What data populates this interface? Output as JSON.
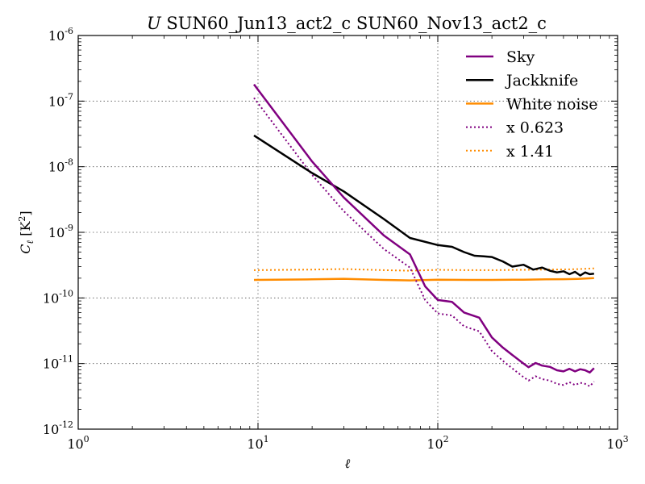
{
  "chart_data": {
    "type": "line",
    "title": {
      "prefix": "U",
      "text": " SUN60_Jun13_act2_c SUN60_Nov13_act2_c"
    },
    "xlabel": "ℓ",
    "ylabel": {
      "symbol": "C",
      "subscript": "ℓ",
      "unit": " [K",
      "unit_sup": "2",
      "unit_close": "]"
    },
    "xscale": "log",
    "yscale": "log",
    "xlim": [
      1,
      1000
    ],
    "ylim": [
      1e-12,
      1e-06
    ],
    "x_ticks": [
      {
        "base": "10",
        "exp": "0"
      },
      {
        "base": "10",
        "exp": "1"
      },
      {
        "base": "10",
        "exp": "2"
      },
      {
        "base": "10",
        "exp": "3"
      }
    ],
    "y_ticks": [
      {
        "base": "10",
        "exp": "-12"
      },
      {
        "base": "10",
        "exp": "-11"
      },
      {
        "base": "10",
        "exp": "-10"
      },
      {
        "base": "10",
        "exp": "-9"
      },
      {
        "base": "10",
        "exp": "-8"
      },
      {
        "base": "10",
        "exp": "-7"
      },
      {
        "base": "10",
        "exp": "-6"
      }
    ],
    "grid": true,
    "legend_position": "top-right",
    "series": [
      {
        "name": "Sky",
        "color": "#800080",
        "style": "solid",
        "x": [
          9.5,
          20,
          30,
          50,
          70,
          85,
          100,
          120,
          140,
          170,
          200,
          230,
          260,
          300,
          320,
          350,
          380,
          420,
          460,
          500,
          540,
          580,
          620,
          660,
          700,
          740
        ],
        "y": [
          1.8e-07,
          1.2e-08,
          3.4e-09,
          9e-10,
          4.6e-10,
          1.5e-10,
          9.3e-11,
          8.7e-11,
          6e-11,
          5e-11,
          2.5e-11,
          1.75e-11,
          1.35e-11,
          1e-11,
          8.8e-12,
          1.02e-11,
          9.3e-12,
          8.9e-12,
          7.9e-12,
          7.6e-12,
          8.3e-12,
          7.6e-12,
          8.2e-12,
          7.9e-12,
          7.3e-12,
          8.5e-12
        ]
      },
      {
        "name": "Jackknife",
        "color": "#000000",
        "style": "solid",
        "x": [
          9.5,
          20,
          30,
          50,
          70,
          100,
          120,
          140,
          160,
          180,
          200,
          230,
          260,
          300,
          340,
          380,
          420,
          460,
          500,
          540,
          580,
          620,
          660,
          700,
          740
        ],
        "y": [
          3e-08,
          8e-09,
          4.2e-09,
          1.6e-09,
          8.2e-10,
          6.4e-10,
          6e-10,
          5e-10,
          4.4e-10,
          4.3e-10,
          4.2e-10,
          3.6e-10,
          3e-10,
          3.2e-10,
          2.7e-10,
          2.9e-10,
          2.6e-10,
          2.45e-10,
          2.55e-10,
          2.3e-10,
          2.5e-10,
          2.2e-10,
          2.45e-10,
          2.3e-10,
          2.35e-10
        ]
      },
      {
        "name": "White noise",
        "color": "#ff8c00",
        "style": "solid",
        "x": [
          9.5,
          20,
          30,
          50,
          70,
          100,
          150,
          200,
          300,
          400,
          500,
          600,
          740
        ],
        "y": [
          1.88e-10,
          1.92e-10,
          1.96e-10,
          1.88e-10,
          1.85e-10,
          1.9e-10,
          1.88e-10,
          1.88e-10,
          1.9e-10,
          1.92e-10,
          1.93e-10,
          1.95e-10,
          2e-10
        ]
      },
      {
        "name": "x 0.623",
        "color": "#800080",
        "style": "dotted",
        "x": [
          9.5,
          20,
          30,
          50,
          70,
          85,
          100,
          120,
          140,
          170,
          200,
          230,
          260,
          300,
          320,
          350,
          380,
          420,
          460,
          500,
          540,
          580,
          620,
          660,
          700,
          740
        ],
        "y": [
          1.12e-07,
          7.5e-09,
          2.1e-09,
          5.6e-10,
          2.9e-10,
          9.3e-11,
          5.8e-11,
          5.4e-11,
          3.7e-11,
          3.1e-11,
          1.55e-11,
          1.1e-11,
          8.4e-12,
          6.2e-12,
          5.5e-12,
          6.4e-12,
          5.8e-12,
          5.5e-12,
          4.9e-12,
          4.7e-12,
          5.2e-12,
          4.7e-12,
          5.1e-12,
          4.9e-12,
          4.5e-12,
          5.3e-12
        ]
      },
      {
        "name": "x 1.41",
        "color": "#ff8c00",
        "style": "dotted",
        "x": [
          9.5,
          20,
          30,
          50,
          70,
          100,
          150,
          200,
          300,
          400,
          500,
          600,
          740
        ],
        "y": [
          2.65e-10,
          2.7e-10,
          2.76e-10,
          2.65e-10,
          2.6e-10,
          2.68e-10,
          2.65e-10,
          2.65e-10,
          2.68e-10,
          2.7e-10,
          2.72e-10,
          2.75e-10,
          2.82e-10
        ]
      }
    ]
  }
}
